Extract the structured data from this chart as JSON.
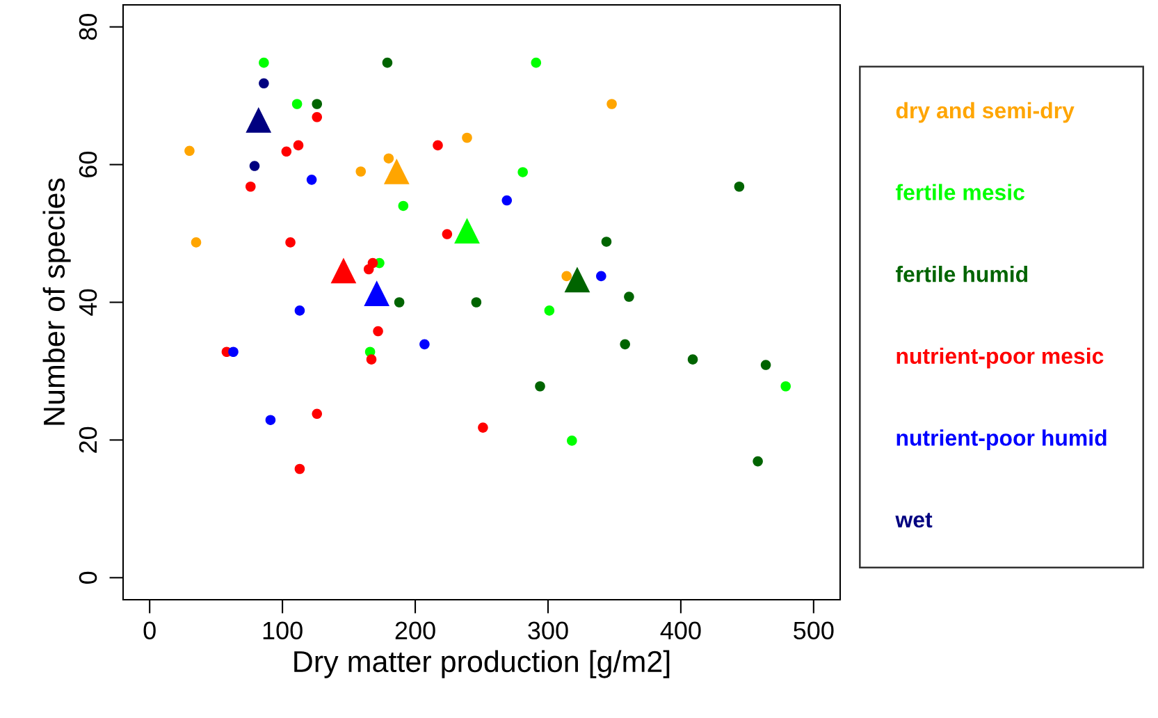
{
  "chart_data": {
    "type": "scatter",
    "xlabel": "Dry matter production [g/m2]",
    "ylabel": "Number of species",
    "xlim": [
      -20,
      520
    ],
    "xticks": [
      0,
      100,
      200,
      300,
      400,
      500
    ],
    "ylim": [
      -3.2,
      83.2
    ],
    "yticks": [
      0,
      20,
      40,
      60,
      80
    ],
    "grid": false,
    "legend": "right",
    "marker": "circle",
    "series": [
      {
        "name": "dry and semi-dry",
        "color": "#ffa500",
        "x": [
          30,
          35,
          159,
          180,
          239,
          314,
          348
        ],
        "values": [
          62.0,
          48.7,
          59.0,
          60.9,
          63.9,
          43.8,
          68.8
        ]
      },
      {
        "name": "fertile mesic",
        "color": "#00ff00",
        "x": [
          86,
          111,
          191,
          173,
          166,
          291,
          281,
          301,
          318,
          479
        ],
        "values": [
          74.8,
          68.8,
          54,
          45.7,
          32.8,
          74.8,
          58.9,
          38.8,
          19.9,
          27.8
        ]
      },
      {
        "name": "fertile humid",
        "color": "#006400",
        "x": [
          126,
          179,
          188,
          246,
          294,
          344,
          361,
          358,
          409,
          444,
          458,
          464
        ],
        "values": [
          68.8,
          74.8,
          40,
          40,
          27.8,
          48.8,
          40.8,
          33.9,
          31.7,
          56.8,
          16.9,
          30.9
        ]
      },
      {
        "name": "nutrient-poor mesic",
        "color": "#ff0000",
        "x": [
          126,
          103,
          112,
          76,
          106,
          217,
          224,
          165,
          168,
          172,
          167,
          58,
          126,
          113,
          251
        ],
        "values": [
          66.9,
          61.9,
          62.8,
          56.8,
          48.7,
          62.8,
          49.9,
          44.8,
          45.7,
          35.8,
          31.7,
          32.8,
          23.8,
          15.8,
          21.8
        ]
      },
      {
        "name": "nutrient-poor humid",
        "color": "#0000ff",
        "x": [
          122,
          63,
          113,
          91,
          207,
          269,
          340
        ],
        "values": [
          57.8,
          32.8,
          38.8,
          22.9,
          33.9,
          54.8,
          43.8
        ]
      },
      {
        "name": "wet",
        "color": "#000080",
        "x": [
          86,
          79
        ],
        "values": [
          71.8,
          59.8
        ]
      },
      {
        "color": "#ffa500",
        "marker": "triangle",
        "x": [
          186
        ],
        "values": [
          59
        ]
      },
      {
        "color": "#00ff00",
        "marker": "triangle",
        "x": [
          239
        ],
        "values": [
          50.4
        ]
      },
      {
        "color": "#006400",
        "marker": "triangle",
        "x": [
          322
        ],
        "values": [
          43.3
        ]
      },
      {
        "color": "#ff0000",
        "marker": "triangle",
        "x": [
          146
        ],
        "values": [
          44.6
        ]
      },
      {
        "color": "#0000ff",
        "marker": "triangle",
        "x": [
          171
        ],
        "values": [
          41.3
        ]
      },
      {
        "color": "#000080",
        "marker": "triangle",
        "x": [
          82
        ],
        "values": [
          66.5
        ]
      }
    ]
  }
}
